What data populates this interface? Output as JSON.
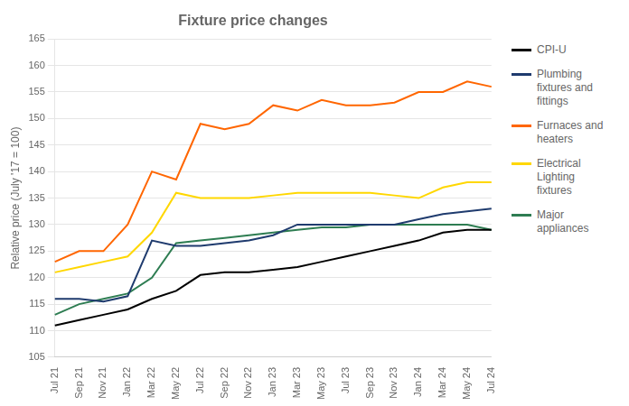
{
  "chart_data": {
    "type": "line",
    "title": "Fixture price changes",
    "y_label": "Relative price (July '17 = 100)",
    "categories": [
      "Jul 21",
      "Sep 21",
      "Nov 21",
      "Jan 22",
      "Mar 22",
      "May 22",
      "Jul 22",
      "Sep 22",
      "Nov 22",
      "Jan 23",
      "Mar 23",
      "May 23",
      "Jul 23",
      "Sep 23",
      "Nov 23",
      "Jan 24",
      "Mar 24",
      "May 24",
      "Jul 24"
    ],
    "series": [
      {
        "name": "CPI-U",
        "color": "#000000",
        "values": [
          111.0,
          112.0,
          113.0,
          114.0,
          116.0,
          117.5,
          120.5,
          121.0,
          121.0,
          121.5,
          122.0,
          123.0,
          124.0,
          125.0,
          126.0,
          127.0,
          128.5,
          129.0,
          129.0
        ]
      },
      {
        "name": "Plumbing\nfixtures and\nfittings",
        "color": "#1F3B6E",
        "values": [
          116.0,
          116.0,
          115.5,
          116.5,
          127.0,
          126.0,
          126.0,
          126.5,
          127.0,
          128.0,
          130.0,
          130.0,
          130.0,
          130.0,
          130.0,
          131.0,
          132.0,
          132.5,
          133.0
        ]
      },
      {
        "name": "Furnaces and\nheaters",
        "color": "#FF6600",
        "values": [
          123.0,
          125.0,
          125.0,
          130.0,
          140.0,
          138.5,
          149.0,
          148.0,
          149.0,
          152.5,
          151.5,
          153.5,
          152.5,
          152.5,
          153.0,
          155.0,
          155.0,
          157.0,
          156.0
        ]
      },
      {
        "name": "Electrical\nLighting\nfixtures",
        "color": "#FFD700",
        "values": [
          121.0,
          122.0,
          123.0,
          124.0,
          128.5,
          136.0,
          135.0,
          135.0,
          135.0,
          135.5,
          136.0,
          136.0,
          136.0,
          136.0,
          135.5,
          135.0,
          137.0,
          138.0,
          138.0
        ]
      },
      {
        "name": "Major\nappliances",
        "color": "#2E7D52",
        "values": [
          113.0,
          115.0,
          116.0,
          117.0,
          120.0,
          126.5,
          127.0,
          127.5,
          128.0,
          128.5,
          129.0,
          129.5,
          129.5,
          130.0,
          130.0,
          130.0,
          130.0,
          130.0,
          129.0
        ]
      }
    ],
    "ylim": [
      105,
      165
    ],
    "yticks": [
      105,
      110,
      115,
      120,
      125,
      130,
      135,
      140,
      145,
      150,
      155,
      160,
      165
    ],
    "grid": true,
    "legend": "right"
  }
}
